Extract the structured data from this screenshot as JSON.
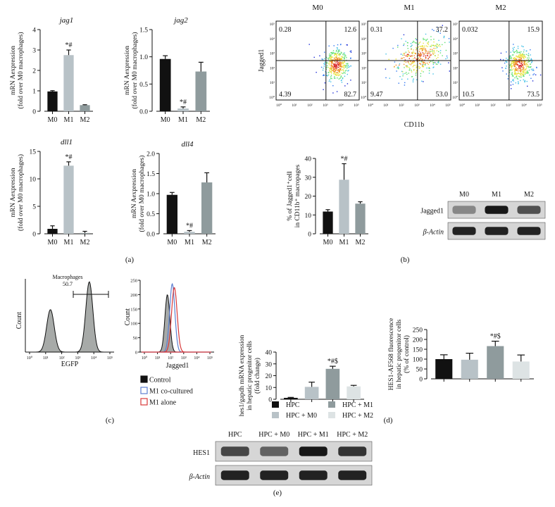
{
  "colors": {
    "m0": "#111111",
    "m1": "#b8c2c7",
    "m2": "#8f9b9d",
    "hpc": "#111111",
    "hpc_m0": "#b8c2c7",
    "hpc_m1": "#8f9b9d",
    "hpc_m2": "#dde3e4",
    "hist_fill": "#a7aaa8",
    "m1_cocultured": "#5d7fd0",
    "m1_alone": "#d8393a"
  },
  "chart_data": [
    {
      "id": "jag1",
      "type": "bar",
      "title": "jag1",
      "ylabel": "mRN Aexpression\n(fold over M0 macrophages)",
      "categories": [
        "M0",
        "M1",
        "M2"
      ],
      "values": [
        0.97,
        2.75,
        0.3
      ],
      "errors": [
        0.04,
        0.25,
        0.02
      ],
      "ylim": [
        0,
        4
      ],
      "ticks": [
        0,
        1,
        2,
        3,
        4
      ],
      "annotations": [
        "",
        "*#",
        ""
      ]
    },
    {
      "id": "jag2",
      "type": "bar",
      "title": "jag2",
      "ylabel": "mRN Aexpression\n(fold over M0 macrophages)",
      "categories": [
        "M0",
        "M1",
        "M2"
      ],
      "values": [
        0.96,
        0.05,
        0.73
      ],
      "errors": [
        0.06,
        0.03,
        0.17
      ],
      "ylim": [
        0,
        1.5
      ],
      "ticks": [
        0.0,
        0.5,
        1.0,
        1.5
      ],
      "annotations": [
        "",
        "*#",
        ""
      ]
    },
    {
      "id": "dll1",
      "type": "bar",
      "title": "dll1",
      "ylabel": "mRN Aexpression\n(fold over M0 macrophages)",
      "categories": [
        "M0",
        "M1",
        "M2"
      ],
      "values": [
        0.9,
        12.4,
        0.15
      ],
      "errors": [
        0.55,
        0.7,
        0.3
      ],
      "ylim": [
        0,
        15
      ],
      "ticks": [
        0,
        5,
        10,
        15
      ],
      "annotations": [
        "",
        "*#",
        ""
      ]
    },
    {
      "id": "dll4",
      "type": "bar",
      "title": "dll4",
      "ylabel": "mRN Aexpression\n(fold over M0 macrophages)",
      "categories": [
        "M0",
        "M1",
        "M2"
      ],
      "values": [
        0.97,
        0.05,
        1.28
      ],
      "errors": [
        0.06,
        0.03,
        0.24
      ],
      "ylim": [
        0,
        2.0
      ],
      "ticks": [
        0.0,
        0.5,
        1.0,
        1.5,
        2.0
      ],
      "annotations": [
        "",
        "*#",
        ""
      ]
    },
    {
      "id": "jagged_pct",
      "type": "bar",
      "title": "",
      "ylabel": "% of Jagged1⁺cell\nin CD11b⁺ macropages",
      "categories": [
        "M0",
        "M1",
        "M2"
      ],
      "values": [
        11.8,
        28.7,
        16.0
      ],
      "errors": [
        1.0,
        8.5,
        1.0
      ],
      "ylim": [
        0,
        40
      ],
      "ticks": [
        0,
        10,
        20,
        30,
        40
      ],
      "annotations": [
        "",
        "*#",
        ""
      ]
    },
    {
      "id": "hes1_mrna",
      "type": "bar",
      "title": "",
      "ylabel": "hes1/gapdh mRNA expression\nin hepatic progenitor cells\n(fold change)",
      "categories": [
        "HPC",
        "HPC + M0",
        "HPC + M1",
        "HPC + M2"
      ],
      "values": [
        1.2,
        10.5,
        25.8,
        10.9
      ],
      "errors": [
        0.4,
        4.0,
        2.2,
        0.9
      ],
      "ylim": [
        0,
        40
      ],
      "ticks": [
        0,
        10,
        20,
        30,
        40
      ],
      "annotations": [
        "",
        "",
        "*#$",
        ""
      ]
    },
    {
      "id": "hes1_fluor",
      "type": "bar",
      "title": "",
      "ylabel": "HES1-AF568 fluorescence\nin hepatic progenitor cells\n(% of control)",
      "categories": [
        "HPC",
        "HPC + M0",
        "HPC + M1",
        "HPC + M2"
      ],
      "values": [
        100,
        97,
        166,
        88
      ],
      "errors": [
        22,
        33,
        25,
        33
      ],
      "ylim": [
        0,
        250
      ],
      "ticks": [
        0,
        50,
        100,
        150,
        200,
        250
      ],
      "annotations": [
        "",
        "",
        "*#$",
        ""
      ]
    }
  ],
  "flow": {
    "xlabel": "CD11b",
    "ylabel": "Jagged1",
    "panels": [
      {
        "title": "M0",
        "q": [
          "0.28",
          "12.6",
          "4.39",
          "82.7"
        ]
      },
      {
        "title": "M1",
        "q": [
          "0.31",
          "37.2",
          "9.47",
          "53.0"
        ]
      },
      {
        "title": "M2",
        "q": [
          "0.032",
          "15.9",
          "10.5",
          "73.5"
        ]
      }
    ],
    "ticks": [
      "10⁰",
      "10¹",
      "10²",
      "10³",
      "10⁴",
      "10⁵"
    ]
  },
  "western_b": {
    "lanes": [
      "M0",
      "M1",
      "M2"
    ],
    "rows": [
      "Jagged1",
      "β-Actin"
    ],
    "intensity": [
      [
        0.35,
        0.95,
        0.65
      ],
      [
        0.9,
        0.9,
        0.9
      ]
    ]
  },
  "western_e": {
    "lanes": [
      "HPC",
      "HPC + M0",
      "HPC + M1",
      "HPC + M2"
    ],
    "rows": [
      "HES1",
      "β-Actin"
    ],
    "intensity": [
      [
        0.7,
        0.55,
        0.95,
        0.8
      ],
      [
        0.9,
        0.9,
        0.9,
        0.9
      ]
    ]
  },
  "hist_egfp": {
    "xlabel": "EGFP",
    "ylabel": "Count",
    "gate_label": "Macrophages",
    "gate_value": "50.7",
    "ticks": [
      "10⁰",
      "10¹",
      "10²",
      "10³",
      "10⁴",
      "10⁵"
    ]
  },
  "hist_jag": {
    "xlabel": "Jagged1",
    "ylabel": "Count",
    "yticks": [
      "0",
      "50",
      "100",
      "150",
      "200",
      "250"
    ],
    "xticks": [
      "10⁰",
      "10¹",
      "10²",
      "10³",
      "10⁴",
      "10⁵"
    ]
  },
  "legend_c": [
    "Control",
    "M1 co-cultured",
    "M1 alone"
  ],
  "legend_d": [
    "HPC",
    "HPC + M1",
    "HPC + M0",
    "HPC + M2"
  ],
  "panel_labels": {
    "a": "(a)",
    "b": "(b)",
    "c": "(c)",
    "d": "(d)",
    "e": "(e)"
  }
}
